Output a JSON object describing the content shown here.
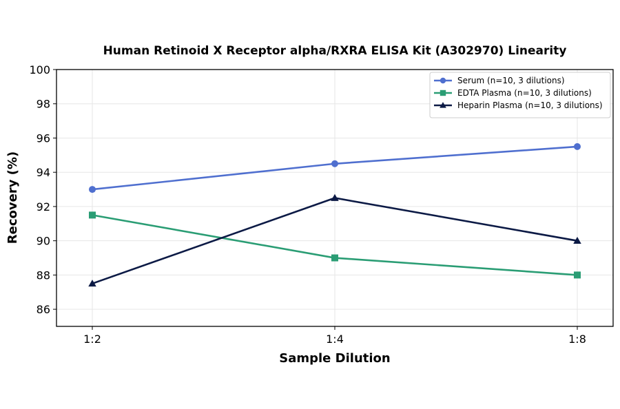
{
  "chart_data": {
    "type": "line",
    "title": "Human Retinoid X Receptor alpha/RXRA ELISA Kit (A302970) Linearity",
    "xlabel": "Sample Dilution",
    "ylabel": "Recovery (%)",
    "categories": [
      "1:2",
      "1:4",
      "1:8"
    ],
    "ylim": [
      85,
      100
    ],
    "yticks": [
      86,
      88,
      90,
      92,
      94,
      96,
      98,
      100
    ],
    "grid": true,
    "legend_position": "top-right",
    "series": [
      {
        "name": "Serum (n=10, 3 dilutions)",
        "values": [
          93.0,
          94.5,
          95.5
        ],
        "color": "#4f6fcf",
        "marker": "circle"
      },
      {
        "name": "EDTA Plasma (n=10, 3 dilutions)",
        "values": [
          91.5,
          89.0,
          88.0
        ],
        "color": "#2a9d74",
        "marker": "square"
      },
      {
        "name": "Heparin Plasma (n=10, 3 dilutions)",
        "values": [
          87.5,
          92.5,
          90.0
        ],
        "color": "#0c1a45",
        "marker": "triangle"
      }
    ]
  }
}
